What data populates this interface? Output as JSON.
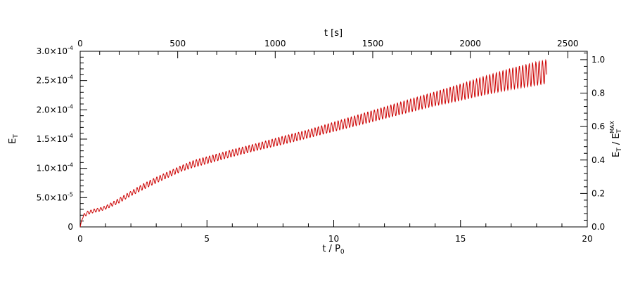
{
  "chart_data": {
    "type": "line",
    "grid": false,
    "x_bottom": {
      "label": "t / P",
      "label_sub": "0",
      "range": [
        0,
        20
      ],
      "ticks": [
        0,
        5,
        10,
        15,
        20
      ],
      "tick_labels": [
        "0",
        "5",
        "10",
        "15",
        "20"
      ]
    },
    "x_top": {
      "label": "t [s]",
      "range": [
        0,
        2600
      ],
      "ticks": [
        0,
        500,
        1000,
        1500,
        2000,
        2500
      ],
      "tick_labels": [
        "0",
        "500",
        "1000",
        "1500",
        "2000",
        "2500"
      ]
    },
    "y_left": {
      "label": "E",
      "label_sub": "T",
      "range": [
        0,
        0.0003
      ],
      "ticks": [
        0,
        5e-05,
        0.0001,
        0.00015,
        0.0002,
        0.00025,
        0.0003
      ],
      "tick_labels": [
        {
          "mant": "0",
          "exp": ""
        },
        {
          "mant": "5.0×10",
          "exp": "-5"
        },
        {
          "mant": "1.0×10",
          "exp": "-4"
        },
        {
          "mant": "1.5×10",
          "exp": "-4"
        },
        {
          "mant": "2.0×10",
          "exp": "-4"
        },
        {
          "mant": "2.5×10",
          "exp": "-4"
        },
        {
          "mant": "3.0×10",
          "exp": "-4"
        }
      ]
    },
    "y_right": {
      "label": "E",
      "label_sub": "T",
      "label_sep": " / ",
      "label2": "E",
      "label2_sub": "T",
      "label2_sup": "MAX",
      "range": [
        0,
        1.05
      ],
      "ticks": [
        0,
        0.2,
        0.4,
        0.6,
        0.8,
        1.0
      ],
      "tick_labels": [
        "0.0",
        "0.2",
        "0.4",
        "0.6",
        "0.8",
        "1.0"
      ]
    },
    "series": [
      {
        "color": "#cc0000",
        "x": [
          0,
          0.1,
          0.3,
          0.5,
          0.8,
          1.0,
          1.5,
          2.0,
          2.5,
          3.0,
          3.5,
          4.0,
          4.5,
          5.0,
          6.0,
          7.0,
          8.0,
          9.0,
          10.0,
          11.0,
          12.0,
          13.0,
          14.0,
          15.0,
          16.0,
          17.0,
          18.0,
          18.4
        ],
        "y_mean": [
          0,
          1.8e-05,
          2.4e-05,
          2.7e-05,
          3e-05,
          3.3e-05,
          4.4e-05,
          5.7e-05,
          6.9e-05,
          8e-05,
          9e-05,
          0.0001,
          0.000108,
          0.000114,
          0.000126,
          0.000137,
          0.000148,
          0.000159,
          0.000171,
          0.000183,
          0.000195,
          0.000207,
          0.000219,
          0.00023,
          0.000242,
          0.000253,
          0.000262,
          0.000265
        ],
        "y_amplitude": [
          0,
          3e-06,
          3e-06,
          3e-06,
          3e-06,
          3e-06,
          4e-06,
          4e-06,
          5e-06,
          5e-06,
          5e-06,
          5e-06,
          6e-06,
          6e-06,
          6e-06,
          6e-06,
          7e-06,
          7e-06,
          8e-06,
          9e-06,
          1e-05,
          1.1e-05,
          1.2e-05,
          1.4e-05,
          1.6e-05,
          1.8e-05,
          2e-05,
          2e-05
        ],
        "oscillation_period": 0.13
      }
    ]
  }
}
